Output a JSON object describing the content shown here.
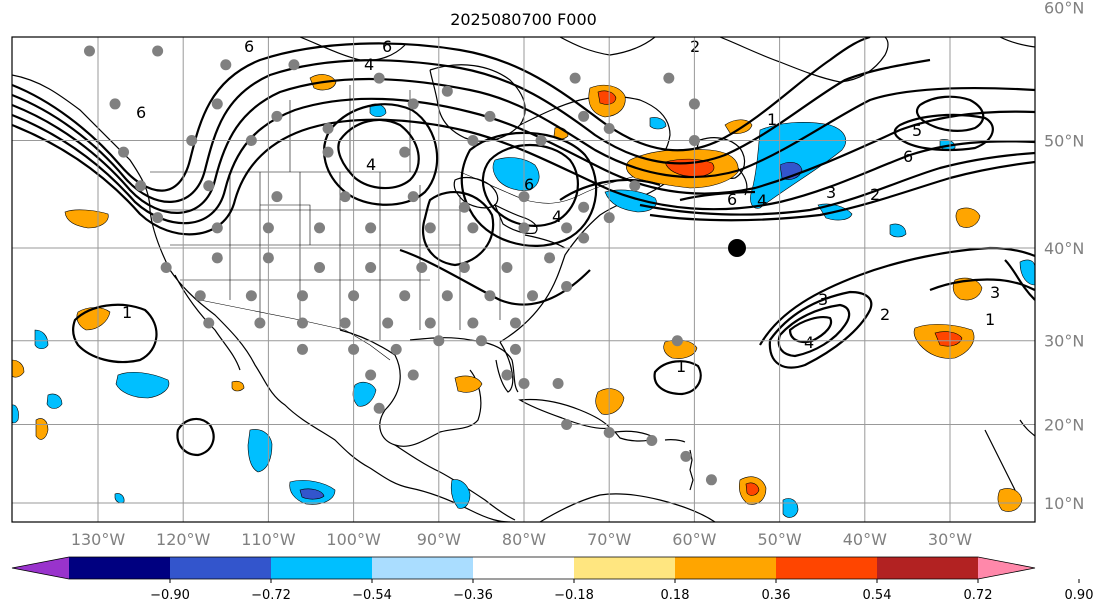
{
  "title": "2025080700 F000",
  "latitudes": [
    {
      "value": 60,
      "label": "60°N"
    },
    {
      "value": 50,
      "label": "50°N"
    },
    {
      "value": 40,
      "label": "40°N"
    },
    {
      "value": 30,
      "label": "30°N"
    },
    {
      "value": 20,
      "label": "20°N"
    },
    {
      "value": 10,
      "label": "10°N"
    }
  ],
  "longitudes": [
    {
      "value": -130,
      "label": "130°W"
    },
    {
      "value": -120,
      "label": "120°W"
    },
    {
      "value": -110,
      "label": "110°W"
    },
    {
      "value": -100,
      "label": "100°W"
    },
    {
      "value": -90,
      "label": "90°W"
    },
    {
      "value": -80,
      "label": "80°W"
    },
    {
      "value": -70,
      "label": "70°W"
    },
    {
      "value": -60,
      "label": "60°W"
    },
    {
      "value": -50,
      "label": "50°W"
    },
    {
      "value": -40,
      "label": "40°W"
    },
    {
      "value": -30,
      "label": "30°W"
    }
  ],
  "colorbar": {
    "colors": [
      "#9933cc",
      "#000080",
      "#3355cc",
      "#00bfff",
      "#aaddff",
      "#ffffff",
      "#ffe680",
      "#ffa500",
      "#ff4500",
      "#b22222",
      "#ff88aa"
    ],
    "labels": [
      "−0.90",
      "−0.72",
      "−0.54",
      "−0.36",
      "−0.18",
      "0.18",
      "0.36",
      "0.54",
      "0.72",
      "0.90"
    ]
  },
  "contour_labels": [
    "6",
    "6",
    "4",
    "6",
    "4",
    "6",
    "4",
    "2",
    "1",
    "2",
    "4",
    "6",
    "3",
    "1",
    "1",
    "2",
    "3",
    "4",
    "1",
    "3",
    "5",
    "6"
  ],
  "marker": {
    "lon": -55,
    "lat": 40
  },
  "stations": [
    [
      -125,
      65
    ],
    [
      -118,
      64
    ],
    [
      -105,
      63
    ],
    [
      -92,
      65
    ],
    [
      -85,
      64
    ],
    [
      -76,
      64
    ],
    [
      -67,
      64
    ],
    [
      -128,
      60
    ],
    [
      -113,
      60
    ],
    [
      -102,
      60
    ],
    [
      -86,
      59
    ],
    [
      -72,
      60
    ],
    [
      -131,
      57
    ],
    [
      -123,
      57
    ],
    [
      -115,
      56
    ],
    [
      -107,
      56
    ],
    [
      -97,
      55
    ],
    [
      -89,
      54
    ],
    [
      -74,
      55
    ],
    [
      -63,
      55
    ],
    [
      -128,
      53
    ],
    [
      -116,
      53
    ],
    [
      -109,
      52
    ],
    [
      -103,
      51
    ],
    [
      -93,
      53
    ],
    [
      -84,
      52
    ],
    [
      -73,
      52
    ],
    [
      -60,
      53
    ],
    [
      -127,
      49
    ],
    [
      -119,
      50
    ],
    [
      -112,
      50
    ],
    [
      -103,
      49
    ],
    [
      -94,
      49
    ],
    [
      -86,
      50
    ],
    [
      -78,
      50
    ],
    [
      -70,
      51
    ],
    [
      -60,
      50
    ],
    [
      -125,
      46
    ],
    [
      -117,
      46
    ],
    [
      -109,
      45
    ],
    [
      -101,
      45
    ],
    [
      -93,
      45
    ],
    [
      -87,
      44
    ],
    [
      -80,
      45
    ],
    [
      -73,
      44
    ],
    [
      -67,
      46
    ],
    [
      -123,
      43
    ],
    [
      -116,
      42
    ],
    [
      -110,
      42
    ],
    [
      -104,
      42
    ],
    [
      -98,
      42
    ],
    [
      -91,
      42
    ],
    [
      -86,
      42
    ],
    [
      -80,
      42
    ],
    [
      -75,
      42
    ],
    [
      -70,
      43
    ],
    [
      -122,
      38
    ],
    [
      -116,
      39
    ],
    [
      -110,
      39
    ],
    [
      -104,
      38
    ],
    [
      -98,
      38
    ],
    [
      -92,
      38
    ],
    [
      -87,
      38
    ],
    [
      -82,
      38
    ],
    [
      -77,
      39
    ],
    [
      -73,
      41
    ],
    [
      -118,
      35
    ],
    [
      -112,
      35
    ],
    [
      -106,
      35
    ],
    [
      -100,
      35
    ],
    [
      -94,
      35
    ],
    [
      -89,
      35
    ],
    [
      -84,
      35
    ],
    [
      -79,
      35
    ],
    [
      -75,
      36
    ],
    [
      -117,
      32
    ],
    [
      -111,
      32
    ],
    [
      -106,
      32
    ],
    [
      -101,
      32
    ],
    [
      -96,
      32
    ],
    [
      -91,
      32
    ],
    [
      -86,
      32
    ],
    [
      -81,
      32
    ],
    [
      -106,
      29
    ],
    [
      -100,
      29
    ],
    [
      -95,
      29
    ],
    [
      -90,
      30
    ],
    [
      -85,
      30
    ],
    [
      -81,
      29
    ],
    [
      -98,
      26
    ],
    [
      -93,
      26
    ],
    [
      -82,
      26
    ],
    [
      -80,
      25
    ],
    [
      -97,
      22
    ],
    [
      -76,
      25
    ],
    [
      -75,
      20
    ],
    [
      -70,
      19
    ],
    [
      -65,
      18
    ],
    [
      -61,
      16
    ],
    [
      -58,
      13
    ],
    [
      -62,
      30
    ]
  ]
}
